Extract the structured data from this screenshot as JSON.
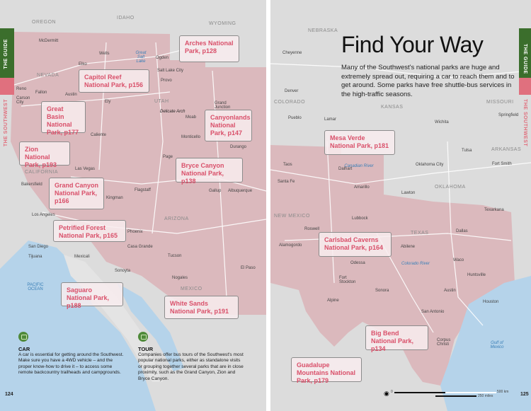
{
  "left_page": {
    "tab": {
      "section": "THE GUIDE",
      "region": "THE SOUTHWEST"
    },
    "states": [
      "OREGON",
      "IDAHO",
      "WYOMING",
      "NEVADA",
      "UTAH",
      "CALIFORNIA",
      "ARIZONA",
      "MEXICO"
    ],
    "water": [
      "Great Salt Lake",
      "PACIFIC OCEAN"
    ],
    "cities": [
      "McDermitt",
      "Wells",
      "Elko",
      "Ogden",
      "Salt Lake City",
      "Provo",
      "Reno",
      "Fallon",
      "Carson City",
      "Austin",
      "Ely",
      "Delicate Arch",
      "Moab",
      "Grand Junction",
      "Caliente",
      "Monticello",
      "Durango",
      "Page",
      "Las Vegas",
      "Bakersfield",
      "Kingman",
      "Flagstaff",
      "Gallup",
      "Albuquerque",
      "Los Angeles",
      "Phoenix",
      "San Diego",
      "Tijuana",
      "Mexicali",
      "Casa Grande",
      "Tucson",
      "Sonoyta",
      "Nogales",
      "El Paso"
    ],
    "parks": [
      {
        "label": "Arches National Park, p128"
      },
      {
        "label": "Capitol Reef National Park, p156"
      },
      {
        "label": "Great Basin National Park, p177"
      },
      {
        "label": "Canyonlands National Park, p147"
      },
      {
        "label": "Zion National Park, p193"
      },
      {
        "label": "Bryce Canyon National Park, p138"
      },
      {
        "label": "Grand Canyon National Park, p166"
      },
      {
        "label": "Petrified Forest National Park, p165"
      },
      {
        "label": "Saguaro National Park, p188"
      },
      {
        "label": "White Sands National Park, p191"
      }
    ],
    "car": {
      "icon": "car-icon",
      "title": "CAR",
      "body": "A car is essential for getting around the Southwest. Make sure you have a 4WD vehicle – and the proper know-how to drive it – to access some remote backcountry trailheads and campgrounds."
    },
    "tour": {
      "icon": "bus-icon",
      "title": "TOUR",
      "body": "Companies offer bus tours of the Southwest's most popular national parks, either as standalone visits or grouping together several parks that are in close proximity, such as the Grand Canyon, Zion and Bryce Canyon."
    },
    "page_number": "124"
  },
  "right_page": {
    "title": "Find Your Way",
    "intro": "Many of the Southwest's national parks are huge and extremely spread out, requiring a car to reach them and to get around. Some parks have free shuttle-bus services in the high-traffic seasons.",
    "tab": {
      "section": "THE GUIDE",
      "region": "THE SOUTHWEST"
    },
    "states": [
      "NEBRASKA",
      "COLORADO",
      "KANSAS",
      "MISSOURI",
      "ARKANSAS",
      "OKLAHOMA",
      "NEW MEXICO",
      "TEXAS"
    ],
    "water": [
      "Canadian River",
      "Colorado River",
      "Gulf of Mexico"
    ],
    "cities": [
      "Cheyenne",
      "Denver",
      "Pueblo",
      "Lamar",
      "Wichita",
      "Springfield",
      "Taos",
      "Santa Fe",
      "Tulsa",
      "Oklahoma City",
      "Fort Smith",
      "Dalhart",
      "Amarillo",
      "Lawton",
      "Texarkana",
      "Lubbock",
      "Roswell",
      "Dallas",
      "Alamogordo",
      "Abilene",
      "Odessa",
      "Waco",
      "Fort Stockton",
      "Huntsville",
      "Sonora",
      "Austin",
      "Alpine",
      "Houston",
      "San Antonio",
      "Corpus Christi"
    ],
    "parks": [
      {
        "label": "Mesa Verde National Park, p181"
      },
      {
        "label": "Carlsbad Caverns National Park, p164"
      },
      {
        "label": "Big Bend National Park, p134"
      },
      {
        "label": "Guadalupe Mountains National Park, p179"
      }
    ],
    "scale": {
      "km": "500 km",
      "miles": "250 miles",
      "zero": "0"
    },
    "page_number": "125"
  },
  "colors": {
    "land": "#dcdcdc",
    "southwest_region": "#dbb9bd",
    "water": "#b5d3ea",
    "green_tab": "#3b6e2c",
    "pink_accent": "#e0707e",
    "callout_text": "#d9506a"
  }
}
